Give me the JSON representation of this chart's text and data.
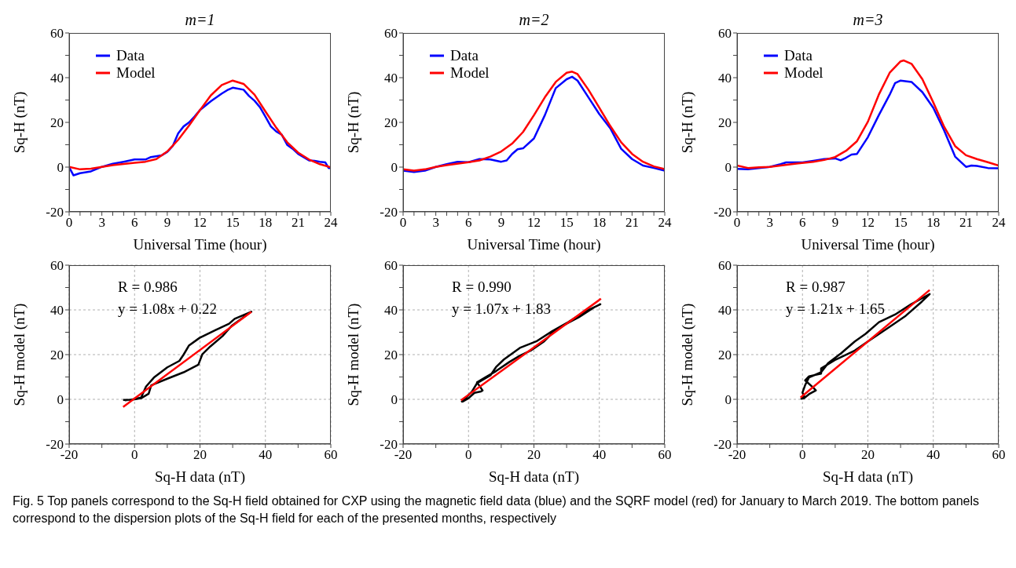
{
  "chart_data": [
    {
      "type": "line",
      "title": "m=1",
      "xlabel": "Universal Time (hour)",
      "ylabel": "Sq-H (nT)",
      "legend": "top left",
      "xlim": [
        0,
        24
      ],
      "ylim": [
        -20,
        60
      ],
      "xticks": [
        0,
        {
          "value": 1,
          "label": null
        },
        {
          "value": 2,
          "label": null
        },
        3,
        {
          "value": 4,
          "label": null
        },
        {
          "value": 5,
          "label": null
        },
        6,
        {
          "value": 7,
          "label": null
        },
        {
          "value": 8,
          "label": null
        },
        9,
        {
          "value": 10,
          "label": null
        },
        {
          "value": 11,
          "label": null
        },
        12,
        {
          "value": 13,
          "label": null
        },
        {
          "value": 14,
          "label": null
        },
        15,
        {
          "value": 16,
          "label": null
        },
        {
          "value": 17,
          "label": null
        },
        18,
        {
          "value": 19,
          "label": null
        },
        {
          "value": 20,
          "label": null
        },
        21,
        {
          "value": 22,
          "label": null
        },
        {
          "value": 23,
          "label": null
        },
        24
      ],
      "yticks": [
        -20,
        {
          "value": -10,
          "label": null
        },
        0,
        {
          "value": 10,
          "label": null
        },
        20,
        {
          "value": 30,
          "label": null
        },
        40,
        {
          "value": 50,
          "label": null
        },
        60
      ],
      "series": [
        {
          "name": "Data",
          "color": "#0000ff",
          "x": [
            0,
            0.4,
            1,
            2,
            3,
            4,
            5,
            6,
            7,
            7.5,
            8.5,
            9,
            9.5,
            10,
            10.5,
            11,
            11.5,
            12,
            13,
            14,
            14.5,
            15,
            16,
            16.5,
            17,
            17.5,
            18,
            18.5,
            19,
            19.5,
            20,
            20.5,
            21,
            22,
            22.5,
            23,
            23.5,
            23.8,
            24
          ],
          "values": [
            0,
            -3.7,
            -2.7,
            -1.9,
            0.1,
            1.5,
            2.4,
            3.4,
            3.4,
            4.5,
            5.3,
            6.8,
            9.4,
            15.1,
            18.2,
            20,
            22.6,
            25.5,
            29.5,
            32.9,
            34.4,
            35.5,
            34.6,
            31.8,
            29.7,
            26.8,
            22.6,
            18.2,
            15.9,
            14.5,
            9.9,
            8.2,
            5.9,
            3,
            2.8,
            2.4,
            2.1,
            -0.4,
            -0.4
          ]
        },
        {
          "name": "Model",
          "color": "#ff0000",
          "x": [
            0,
            1,
            2,
            3,
            4,
            6,
            7,
            8,
            9,
            10,
            11,
            12,
            13,
            14,
            15,
            16,
            17,
            18,
            19,
            20,
            21,
            22,
            23,
            24
          ],
          "values": [
            0.1,
            -1,
            -0.7,
            0.1,
            0.9,
            1.9,
            2.4,
            3.6,
            7,
            12.2,
            18.6,
            25.5,
            32.1,
            36.7,
            38.7,
            37.2,
            32.4,
            24.9,
            17.6,
            11.1,
            6.5,
            3.4,
            1.3,
            -0.1
          ]
        }
      ]
    },
    {
      "type": "line",
      "title": "m=2",
      "xlabel": "Universal Time (hour)",
      "ylabel": "Sq-H (nT)",
      "legend": "top left",
      "xlim": [
        0,
        24
      ],
      "ylim": [
        -20,
        60
      ],
      "xticks": [
        0,
        {
          "value": 1,
          "label": null
        },
        {
          "value": 2,
          "label": null
        },
        3,
        {
          "value": 4,
          "label": null
        },
        {
          "value": 5,
          "label": null
        },
        6,
        {
          "value": 7,
          "label": null
        },
        {
          "value": 8,
          "label": null
        },
        9,
        {
          "value": 10,
          "label": null
        },
        {
          "value": 11,
          "label": null
        },
        12,
        {
          "value": 13,
          "label": null
        },
        {
          "value": 14,
          "label": null
        },
        15,
        {
          "value": 16,
          "label": null
        },
        {
          "value": 17,
          "label": null
        },
        18,
        {
          "value": 19,
          "label": null
        },
        {
          "value": 20,
          "label": null
        },
        21,
        {
          "value": 22,
          "label": null
        },
        {
          "value": 23,
          "label": null
        },
        24
      ],
      "yticks": [
        -20,
        {
          "value": -10,
          "label": null
        },
        0,
        {
          "value": 10,
          "label": null
        },
        20,
        {
          "value": 30,
          "label": null
        },
        40,
        {
          "value": 50,
          "label": null
        },
        60
      ],
      "series": [
        {
          "name": "Data",
          "color": "#0000ff",
          "x": [
            0,
            1,
            2,
            3,
            4,
            5,
            6,
            7,
            8,
            9,
            9.5,
            10,
            10.5,
            11,
            12,
            13,
            14,
            15,
            15.5,
            16,
            17,
            18,
            19,
            20,
            21,
            22,
            23,
            24
          ],
          "values": [
            -1.6,
            -2.2,
            -1.6,
            0.1,
            1.3,
            2.4,
            2.2,
            3.6,
            3.4,
            2.4,
            3,
            5.9,
            8,
            8.4,
            12.8,
            23.2,
            35.3,
            39.3,
            40.4,
            38.7,
            31.2,
            23.7,
            17.4,
            8.2,
            3.6,
            0.7,
            -0.4,
            -1.6
          ]
        },
        {
          "name": "Model",
          "color": "#ff0000",
          "x": [
            0,
            1,
            2,
            3,
            4,
            6,
            7,
            8,
            9,
            10,
            11,
            12,
            13,
            14,
            15,
            15.5,
            16,
            17,
            18,
            19,
            20,
            21,
            22,
            23,
            24
          ],
          "values": [
            -1,
            -1.6,
            -1,
            0.1,
            0.9,
            2.2,
            3,
            4.7,
            7,
            10.5,
            15.7,
            23.2,
            31.2,
            38.1,
            42.2,
            42.7,
            41.6,
            34.6,
            26.5,
            18.4,
            11.1,
            5.9,
            2.4,
            0.3,
            -0.9
          ]
        }
      ]
    },
    {
      "type": "line",
      "title": "m=3",
      "xlabel": "Universal Time (hour)",
      "ylabel": "Sq-H (nT)",
      "legend": "top left",
      "xlim": [
        0,
        24
      ],
      "ylim": [
        -20,
        60
      ],
      "xticks": [
        0,
        {
          "value": 1,
          "label": null
        },
        {
          "value": 2,
          "label": null
        },
        3,
        {
          "value": 4,
          "label": null
        },
        {
          "value": 5,
          "label": null
        },
        6,
        {
          "value": 7,
          "label": null
        },
        {
          "value": 8,
          "label": null
        },
        9,
        {
          "value": 10,
          "label": null
        },
        {
          "value": 11,
          "label": null
        },
        12,
        {
          "value": 13,
          "label": null
        },
        {
          "value": 14,
          "label": null
        },
        15,
        {
          "value": 16,
          "label": null
        },
        {
          "value": 17,
          "label": null
        },
        18,
        {
          "value": 19,
          "label": null
        },
        {
          "value": 20,
          "label": null
        },
        21,
        {
          "value": 22,
          "label": null
        },
        {
          "value": 23,
          "label": null
        },
        24
      ],
      "yticks": [
        -20,
        {
          "value": -10,
          "label": null
        },
        0,
        {
          "value": 10,
          "label": null
        },
        20,
        {
          "value": 30,
          "label": null
        },
        40,
        {
          "value": 50,
          "label": null
        },
        60
      ],
      "series": [
        {
          "name": "Data",
          "color": "#0000ff",
          "x": [
            0,
            1,
            2,
            3,
            4,
            4.5,
            6,
            7,
            8,
            9,
            9.5,
            10,
            10.5,
            11,
            12,
            13,
            14,
            14.5,
            15,
            16,
            17,
            18,
            19,
            20,
            21,
            21.5,
            22,
            23,
            24
          ],
          "values": [
            -0.8,
            -1,
            -0.4,
            0.1,
            1.3,
            2.1,
            2.1,
            2.8,
            3.6,
            3.9,
            3,
            4.2,
            5.6,
            5.9,
            13.4,
            23.2,
            32.4,
            37.6,
            38.7,
            38.1,
            33.5,
            26.5,
            16.3,
            4.7,
            0.1,
            0.7,
            0.5,
            -0.4,
            -0.5
          ]
        },
        {
          "name": "Model",
          "color": "#ff0000",
          "x": [
            0,
            1,
            2,
            3,
            5,
            7,
            8,
            9,
            10,
            11,
            12,
            13,
            14,
            15,
            15.3,
            16,
            17,
            18,
            19,
            20,
            21,
            22,
            23,
            24
          ],
          "values": [
            0.7,
            -0.4,
            -0.1,
            0.1,
            1.3,
            2.4,
            3.2,
            4.5,
            7.3,
            11.6,
            20.3,
            32.4,
            42.2,
            47.3,
            47.7,
            46.2,
            39.3,
            28.9,
            18,
            9.4,
            5.3,
            3.6,
            2.2,
            0.7
          ]
        }
      ]
    },
    {
      "type": "line",
      "xlabel": "Sq-H data (nT)",
      "ylabel": "Sq-H model (nT)",
      "grid": true,
      "annotations": [
        "R = 0.986",
        "y = 1.08x + 0.22"
      ],
      "xlim": [
        -20,
        60
      ],
      "ylim": [
        -20,
        60
      ],
      "xticks": [
        -20,
        {
          "value": -10,
          "label": null
        },
        0,
        {
          "value": 10,
          "label": null
        },
        20,
        {
          "value": 30,
          "label": null
        },
        40,
        {
          "value": 50,
          "label": null
        },
        60
      ],
      "yticks": [
        -20,
        {
          "value": -10,
          "label": null
        },
        0,
        {
          "value": 10,
          "label": null
        },
        20,
        {
          "value": 30,
          "label": null
        },
        40,
        {
          "value": 50,
          "label": null
        },
        60
      ],
      "series": [
        {
          "color": "#000000",
          "x": [
            -3.5,
            -1,
            2,
            3.5,
            5.9,
            10,
            13.7,
            15,
            16.6,
            19.9,
            24.8,
            28.9,
            30.6,
            35.7,
            29.7,
            26.9,
            23.2,
            20.7,
            19.5,
            15,
            10,
            5.1,
            4.3,
            2,
            0,
            -3
          ],
          "values": [
            -0.3,
            -0.2,
            0.8,
            5.7,
            9.7,
            14.3,
            17.2,
            20,
            24,
            27.5,
            31,
            33.8,
            36,
            39.2,
            32.9,
            28.3,
            23.7,
            20.1,
            15.5,
            12.1,
            9.2,
            6.3,
            2.5,
            0.5,
            0,
            -0.4
          ]
        },
        {
          "color": "#ff0000",
          "x": [
            -3.5,
            35.7
          ],
          "values": [
            -3.4,
            39.1
          ]
        }
      ]
    },
    {
      "type": "line",
      "xlabel": "Sq-H data (nT)",
      "ylabel": "Sq-H model (nT)",
      "grid": true,
      "annotations": [
        "R = 0.990",
        "y = 1.07x + 1.83"
      ],
      "xlim": [
        -20,
        60
      ],
      "ylim": [
        -20,
        60
      ],
      "xticks": [
        -20,
        {
          "value": -10,
          "label": null
        },
        0,
        {
          "value": 10,
          "label": null
        },
        20,
        {
          "value": 30,
          "label": null
        },
        40,
        {
          "value": 50,
          "label": null
        },
        60
      ],
      "yticks": [
        -20,
        {
          "value": -10,
          "label": null
        },
        0,
        {
          "value": 10,
          "label": null
        },
        20,
        {
          "value": 30,
          "label": null
        },
        40,
        {
          "value": 50,
          "label": null
        },
        60
      ],
      "series": [
        {
          "color": "#000000",
          "x": [
            -2.2,
            1,
            2.6,
            6.7,
            8.4,
            10.8,
            15.7,
            20.7,
            25.6,
            30.5,
            35.4,
            40.3,
            38.7,
            33.8,
            28.7,
            26.2,
            23.1,
            19,
            15.7,
            12.5,
            8.4,
            5.1,
            2.6,
            4.3,
            3.8,
            1.8,
            0,
            -1.8
          ],
          "values": [
            -1.3,
            3.4,
            7.2,
            10.7,
            14.4,
            17.8,
            23,
            25.9,
            30.5,
            34.5,
            39.1,
            42.5,
            41.4,
            36.8,
            32.8,
            30.5,
            25.9,
            21.8,
            19.5,
            16.7,
            12.6,
            9.8,
            7.6,
            4,
            3.5,
            2.9,
            0.5,
            -1
          ]
        },
        {
          "color": "#ff0000",
          "x": [
            -2.3,
            40.5
          ],
          "values": [
            -0.4,
            45
          ]
        }
      ]
    },
    {
      "type": "line",
      "xlabel": "Sq-H data (nT)",
      "ylabel": "Sq-H model (nT)",
      "grid": true,
      "annotations": [
        "R = 0.987",
        "y = 1.21x + 1.65"
      ],
      "xlim": [
        -20,
        60
      ],
      "ylim": [
        -20,
        60
      ],
      "xticks": [
        -20,
        {
          "value": -10,
          "label": null
        },
        0,
        {
          "value": 10,
          "label": null
        },
        20,
        {
          "value": 30,
          "label": null
        },
        40,
        {
          "value": 50,
          "label": null
        },
        60
      ],
      "yticks": [
        -20,
        {
          "value": -10,
          "label": null
        },
        0,
        {
          "value": 10,
          "label": null
        },
        20,
        {
          "value": 30,
          "label": null
        },
        40,
        {
          "value": 50,
          "label": null
        },
        60
      ],
      "series": [
        {
          "color": "#000000",
          "x": [
            -0.5,
            0.5,
            0,
            0.8,
            2,
            5.7,
            7.8,
            11.9,
            16,
            19.3,
            23.4,
            28.3,
            33.2,
            38.9,
            36.5,
            31.6,
            25.8,
            20,
            16,
            10.2,
            5.7,
            5.7,
            2,
            0.8,
            3.3,
            4.1,
            2,
            0.5,
            -0.3
          ],
          "values": [
            0,
            1.5,
            3,
            6.3,
            9.8,
            12.1,
            16.1,
            20.7,
            25.9,
            29.3,
            34.5,
            37.9,
            42.5,
            47.1,
            43.7,
            37.4,
            31.6,
            25.9,
            21.8,
            17.8,
            13.8,
            11.5,
            10.3,
            8.5,
            5.2,
            4,
            2.3,
            0.5,
            0.3
          ]
        },
        {
          "color": "#ff0000",
          "x": [
            -0.6,
            38.9
          ],
          "values": [
            0.8,
            48.9
          ]
        }
      ]
    },
    {
      "type": "other",
      "annotations": [
        "Fig. 5  Top panels correspond to the Sq-H field obtained for CXP using the magnetic field data (blue) and the SQRF model (red) for January to March 2019. The bottom panels correspond to the dispersion plots of the Sq-H field for each of the presented months, respectively"
      ]
    }
  ]
}
